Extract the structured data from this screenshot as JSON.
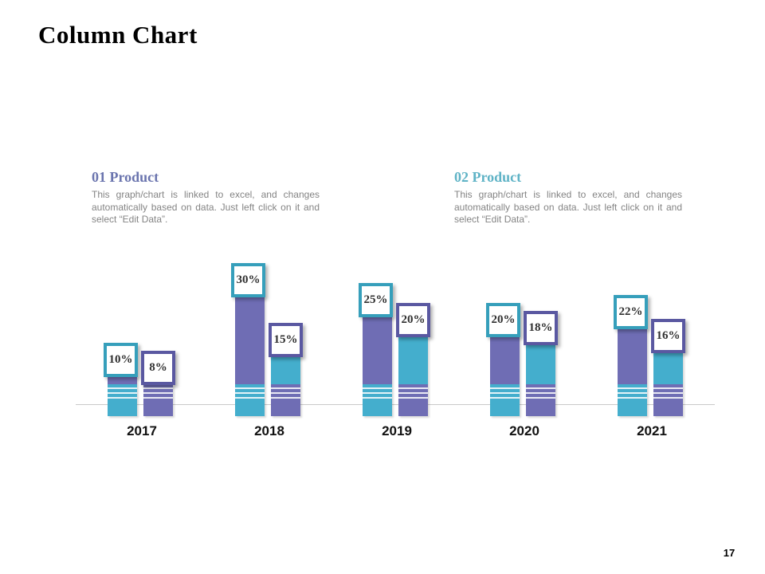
{
  "slide": {
    "title": "Column Chart",
    "page_number": "17"
  },
  "products": [
    {
      "heading": "01 Product",
      "heading_color": "#6a74ae",
      "description": "This graph/chart is linked to excel, and changes automatically based on data. Just left click on it and select “Edit Data”."
    },
    {
      "heading": "02 Product",
      "heading_color": "#5fb3c6",
      "description": "This graph/chart is linked to excel, and changes automatically based on data. Just left click on it and select “Edit Data”."
    }
  ],
  "chart_data": {
    "type": "bar",
    "categories": [
      "2017",
      "2018",
      "2019",
      "2020",
      "2021"
    ],
    "series": [
      {
        "name": "01 Product",
        "color": "#6f6db4",
        "base_color": "#44aecd",
        "label_border_color": "#369fbb",
        "values": [
          10,
          30,
          25,
          20,
          22
        ],
        "labels": [
          "10%",
          "30%",
          "25%",
          "20%",
          "22%"
        ]
      },
      {
        "name": "02 Product",
        "color": "#44aecd",
        "base_color": "#6f6db4",
        "label_border_color": "#5a58a1",
        "values": [
          8,
          15,
          20,
          18,
          16
        ],
        "labels": [
          "8%",
          "15%",
          "20%",
          "18%",
          "16%"
        ]
      }
    ],
    "title": "Column Chart",
    "xlabel": "",
    "ylabel": "",
    "ylim": [
      0,
      40
    ],
    "unit": "%",
    "legend": "none",
    "grid": "white stripe gridlines overlaid on bar bases near axis",
    "axis_line_color": "#c9c9c9",
    "value_label_style": "white boxed data labels at top of each column"
  }
}
